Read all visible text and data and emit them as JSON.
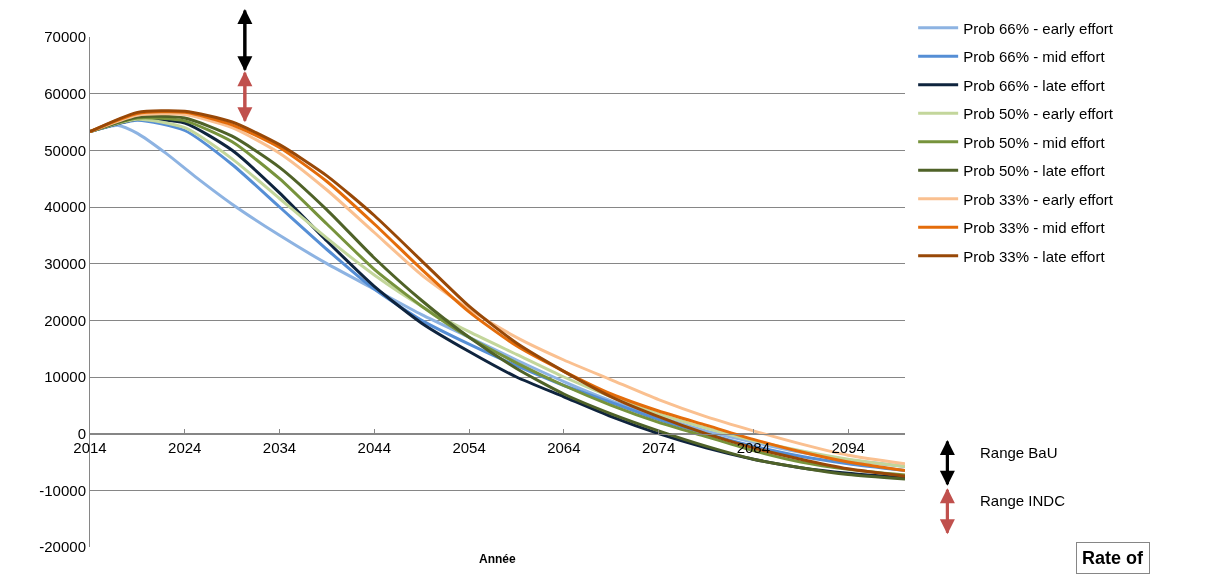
{
  "chart_data": {
    "type": "line",
    "xlabel": "Année",
    "x": [
      2014,
      2019,
      2024,
      2029,
      2034,
      2039,
      2044,
      2049,
      2054,
      2059,
      2064,
      2069,
      2074,
      2079,
      2084,
      2089,
      2094,
      2100
    ],
    "series": [
      {
        "name": "Prob 66% - early effort",
        "color": "#8db3e2",
        "x": [
          2014,
          2017,
          2019,
          2022,
          2025,
          2029,
          2034,
          2039,
          2044,
          2049,
          2054,
          2059,
          2064,
          2069,
          2074,
          2079,
          2084,
          2089,
          2094,
          2100
        ],
        "values": [
          53300,
          54400,
          53000,
          49500,
          45500,
          40500,
          35000,
          30000,
          25500,
          21000,
          17000,
          13000,
          9200,
          5800,
          3000,
          500,
          -1500,
          -3300,
          -4600,
          -5800
        ]
      },
      {
        "name": "Prob 66% - mid effort",
        "color": "#558ed5",
        "values": [
          53300,
          55300,
          53500,
          47500,
          40000,
          32500,
          25500,
          20000,
          15800,
          12000,
          8500,
          5500,
          2500,
          0,
          -2200,
          -4000,
          -5300,
          -6500
        ]
      },
      {
        "name": "Prob 66% - late effort",
        "color": "#0f243e",
        "values": [
          53300,
          55500,
          54800,
          50000,
          42500,
          34000,
          26000,
          19500,
          14500,
          10000,
          6500,
          3000,
          0,
          -2500,
          -4500,
          -6000,
          -7000,
          -7800
        ]
      },
      {
        "name": "Prob 50% - early effort",
        "color": "#c3d69b",
        "values": [
          53300,
          55500,
          54000,
          48500,
          41500,
          34500,
          28000,
          22500,
          18000,
          14000,
          10000,
          6500,
          3500,
          1000,
          -1200,
          -3000,
          -4500,
          -5800
        ]
      },
      {
        "name": "Prob 50% - mid effort",
        "color": "#77933c",
        "values": [
          53300,
          55700,
          55200,
          51500,
          45000,
          37000,
          29000,
          22500,
          17000,
          12500,
          8500,
          5000,
          2000,
          -500,
          -3000,
          -5000,
          -6300,
          -7300
        ]
      },
      {
        "name": "Prob 50% - late effort",
        "color": "#4f6228",
        "values": [
          53300,
          55900,
          55700,
          52500,
          47000,
          39500,
          31000,
          23500,
          17000,
          11500,
          7000,
          3500,
          500,
          -2200,
          -4500,
          -6000,
          -7200,
          -8000
        ]
      },
      {
        "name": "Prob 33% - early effort",
        "color": "#fac090",
        "values": [
          53300,
          56200,
          56300,
          54000,
          49500,
          43000,
          35500,
          28000,
          22000,
          17000,
          13000,
          9500,
          6000,
          3000,
          500,
          -1800,
          -3800,
          -5300
        ]
      },
      {
        "name": "Prob 33% - mid effort",
        "color": "#e46c0a",
        "values": [
          53300,
          56500,
          56700,
          54500,
          50500,
          44500,
          37000,
          29000,
          21500,
          15500,
          11000,
          7000,
          4000,
          1500,
          -1000,
          -3200,
          -5000,
          -6500
        ]
      },
      {
        "name": "Prob 33% - late effort",
        "color": "#984807",
        "values": [
          53300,
          56700,
          56900,
          55000,
          51000,
          45500,
          38500,
          30500,
          22500,
          16000,
          11000,
          6500,
          3000,
          0,
          -2500,
          -4500,
          -6200,
          -7500
        ]
      }
    ],
    "annotations": [
      "Range BaU",
      "Range INDC",
      "Rate of"
    ],
    "xlim": [
      2014,
      2100
    ],
    "xticks": [
      2014,
      2024,
      2034,
      2044,
      2054,
      2064,
      2074,
      2084,
      2094
    ],
    "ylim": [
      -20000,
      70000
    ],
    "yticks": [
      -20000,
      -10000,
      0,
      10000,
      20000,
      30000,
      40000,
      50000,
      60000,
      70000
    ],
    "grid": "y",
    "legend": "right",
    "marker": "none",
    "line_style": "solid"
  }
}
